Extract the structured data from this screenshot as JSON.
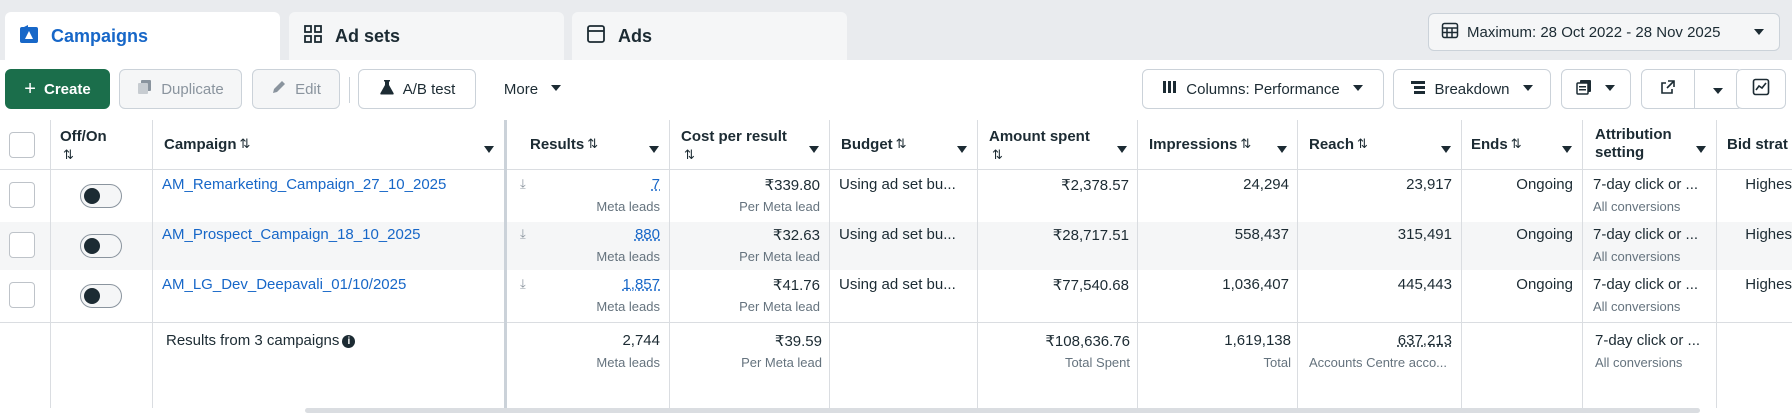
{
  "tabs": [
    {
      "label": "Campaigns",
      "icon": "campaigns-icon",
      "active": true
    },
    {
      "label": "Ad sets",
      "icon": "adsets-grid-icon",
      "active": false
    },
    {
      "label": "Ads",
      "icon": "ads-window-icon",
      "active": false
    }
  ],
  "date_range": "Maximum: 28 Oct 2022 - 28 Nov 2025",
  "toolbar": {
    "create": "Create",
    "duplicate": "Duplicate",
    "edit": "Edit",
    "ab_test": "A/B test",
    "more": "More",
    "columns": "Columns: Performance",
    "breakdown": "Breakdown"
  },
  "columns": {
    "off_on": "Off/On",
    "campaign": "Campaign",
    "results": "Results",
    "cost_per_result": "Cost per result",
    "budget": "Budget",
    "amount_spent": "Amount spent",
    "impressions": "Impressions",
    "reach": "Reach",
    "ends": "Ends",
    "attribution": "Attribution setting",
    "bid_strategy": "Bid strat"
  },
  "rows": [
    {
      "campaign": "AM_Remarketing_Campaign_27_10_2025",
      "results": "7",
      "results_sub": "Meta leads",
      "cost": "₹339.80",
      "cost_sub": "Per Meta lead",
      "budget": "Using ad set bu...",
      "spent": "₹2,378.57",
      "impressions": "24,294",
      "reach": "23,917",
      "ends": "Ongoing",
      "attribution": "7-day click or ...",
      "attribution_sub": "All conversions",
      "bid": "Highes"
    },
    {
      "campaign": "AM_Prospect_Campaign_18_10_2025",
      "results": "880",
      "results_sub": "Meta leads",
      "cost": "₹32.63",
      "cost_sub": "Per Meta lead",
      "budget": "Using ad set bu...",
      "spent": "₹28,717.51",
      "impressions": "558,437",
      "reach": "315,491",
      "ends": "Ongoing",
      "attribution": "7-day click or ...",
      "attribution_sub": "All conversions",
      "bid": "Highes"
    },
    {
      "campaign": "AM_LG_Dev_Deepavali_01/10/2025",
      "results": "1,857",
      "results_sub": "Meta leads",
      "cost": "₹41.76",
      "cost_sub": "Per Meta lead",
      "budget": "Using ad set bu...",
      "spent": "₹77,540.68",
      "impressions": "1,036,407",
      "reach": "445,443",
      "ends": "Ongoing",
      "attribution": "7-day click or ...",
      "attribution_sub": "All conversions",
      "bid": "Highes"
    }
  ],
  "summary": {
    "label": "Results from 3 campaigns",
    "results": "2,744",
    "results_sub": "Meta leads",
    "cost": "₹39.59",
    "cost_sub": "Per Meta lead",
    "spent": "₹108,636.76",
    "spent_sub": "Total Spent",
    "impressions": "1,619,138",
    "impressions_sub": "Total",
    "reach": "637,213",
    "reach_sub": "Accounts Centre acco...",
    "attribution": "7-day click or ...",
    "attribution_sub": "All conversions"
  },
  "colors": {
    "accent": "#1767c8",
    "create_button": "#1b6e4b"
  }
}
